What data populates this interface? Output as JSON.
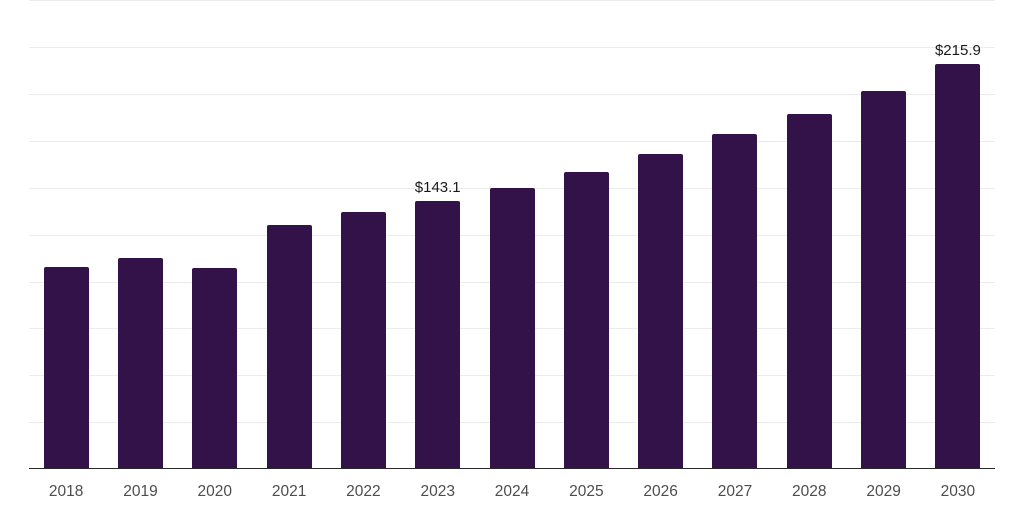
{
  "chart_data": {
    "type": "bar",
    "title": "",
    "xlabel": "",
    "ylabel": "",
    "categories": [
      "2018",
      "2019",
      "2020",
      "2021",
      "2022",
      "2023",
      "2024",
      "2025",
      "2026",
      "2027",
      "2028",
      "2029",
      "2030"
    ],
    "values": [
      107.5,
      112.7,
      107.2,
      130.3,
      137.0,
      143.1,
      149.9,
      158.6,
      168.0,
      178.8,
      189.3,
      201.4,
      215.9
    ],
    "data_labels": {
      "2023": "$143.1",
      "2030": "$215.9"
    },
    "currency_prefix": "$",
    "ylim": [
      0,
      250
    ],
    "gridline_step": 25,
    "grid": true,
    "legend": "none",
    "colors": {
      "bar": "#321248",
      "axis_line": "#2a2a2a",
      "gridline": "#ececec",
      "tick_label": "#4d4d4d",
      "value_label": "#1a1a1a",
      "background": "#ffffff"
    }
  }
}
